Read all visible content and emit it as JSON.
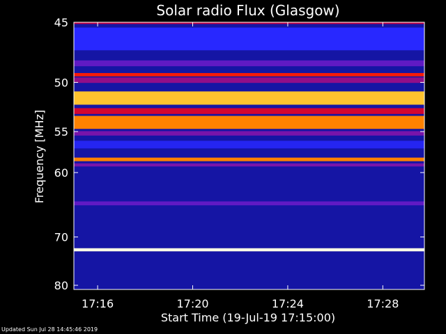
{
  "chart_data": {
    "type": "heatmap",
    "title": "Solar radio Flux (Glasgow)",
    "ylabel": "Frequency [MHz]",
    "xlabel": "Start Time (19-Jul-19 17:15:00)",
    "y_ticks": [
      45,
      50,
      55,
      60,
      70,
      80
    ],
    "y_scale": "reciprocal",
    "ylim": [
      45,
      81
    ],
    "x_ticks": [
      "17:16",
      "17:20",
      "17:24",
      "17:28"
    ],
    "x_range": [
      "17:15:00",
      "17:29:45"
    ],
    "intensity_scale": "blue (low) to red, yellow, white (high)",
    "bands_mhz": [
      {
        "freq": 45.0,
        "width": 0.25,
        "level": 0.55
      },
      {
        "freq": 46.3,
        "width": 1.8,
        "level": 0.35
      },
      {
        "freq": 48.3,
        "width": 0.5,
        "level": 0.42
      },
      {
        "freq": 49.3,
        "width": 0.3,
        "level": 0.68
      },
      {
        "freq": 49.8,
        "width": 0.5,
        "level": 0.48
      },
      {
        "freq": 51.5,
        "width": 1.3,
        "level": 0.88
      },
      {
        "freq": 52.8,
        "width": 0.6,
        "level": 0.58
      },
      {
        "freq": 54.0,
        "width": 1.4,
        "level": 0.8
      },
      {
        "freq": 55.2,
        "width": 0.5,
        "level": 0.45
      },
      {
        "freq": 56.5,
        "width": 0.9,
        "level": 0.33
      },
      {
        "freq": 58.3,
        "width": 0.45,
        "level": 0.8
      },
      {
        "freq": 59.0,
        "width": 0.4,
        "level": 0.45
      },
      {
        "freq": 64.4,
        "width": 0.6,
        "level": 0.42
      },
      {
        "freq": 72.4,
        "width": 0.6,
        "level": 1.0
      }
    ],
    "background_level": 0.22
  },
  "footer_text": "Updated Sun Jul 28 14:45:46 2019"
}
